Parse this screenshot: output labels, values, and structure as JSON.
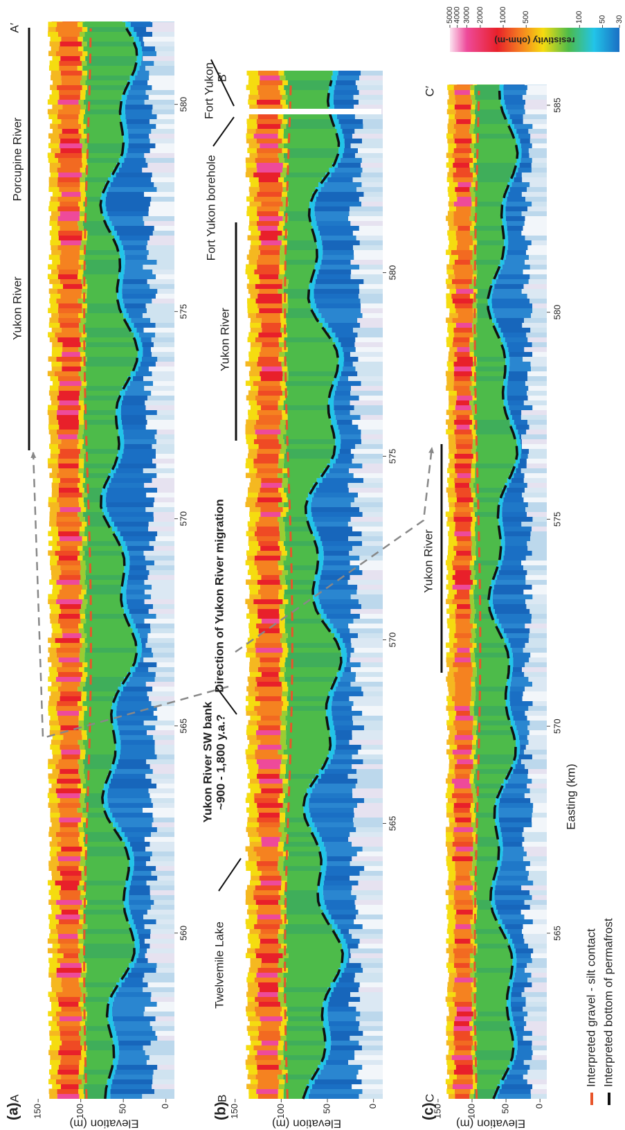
{
  "figure": {
    "colorbar": {
      "title": "resistivity (ohm-m)",
      "ticks": [
        5000,
        4000,
        3000,
        2000,
        1000,
        500,
        100,
        50,
        30
      ],
      "range": [
        30,
        5000
      ],
      "scale": "log"
    },
    "x_axis_label": "Easting (km)",
    "legend": [
      {
        "label": "Interpreted gravel - silt contact",
        "color": "#e8552a"
      },
      {
        "label": "Interpreted bottom of permafrost",
        "color": "#111111"
      }
    ],
    "panels": [
      {
        "label": "(a)",
        "y_axis_label": "Elevation (m)",
        "ylim": [
          -10,
          155
        ],
        "yticks": [
          150,
          100,
          50,
          0
        ],
        "xlim": [
          556,
          582
        ],
        "xticks": [
          560,
          565,
          570,
          575,
          580
        ],
        "start": "A",
        "end": "A′",
        "annotations": [
          "Yukon River",
          "Porcupine River"
        ]
      },
      {
        "label": "(b)",
        "y_axis_label": "Elevation (m)",
        "ylim": [
          -10,
          155
        ],
        "yticks": [
          150,
          100,
          50,
          0
        ],
        "xlim": [
          557.5,
          585.5
        ],
        "xticks": [
          565,
          570,
          575,
          580
        ],
        "start": "B",
        "end": "B′",
        "annotations": [
          "Twelvemile Lake",
          "Yukon River SW bank",
          "~900 - 1,800 y.a.?",
          "Direction of Yukon River migration",
          "Yukon River",
          "Fort Yukon borehole",
          "Fort Yukon"
        ]
      },
      {
        "label": "(c)",
        "y_axis_label": "Elevation (m)",
        "ylim": [
          -10,
          155
        ],
        "yticks": [
          150,
          100,
          50,
          0
        ],
        "xlim": [
          561,
          585.5
        ],
        "xticks": [
          565,
          570,
          575,
          580,
          585
        ],
        "start": "C",
        "end": "C′",
        "annotations": [
          "Yukon River"
        ]
      }
    ]
  }
}
